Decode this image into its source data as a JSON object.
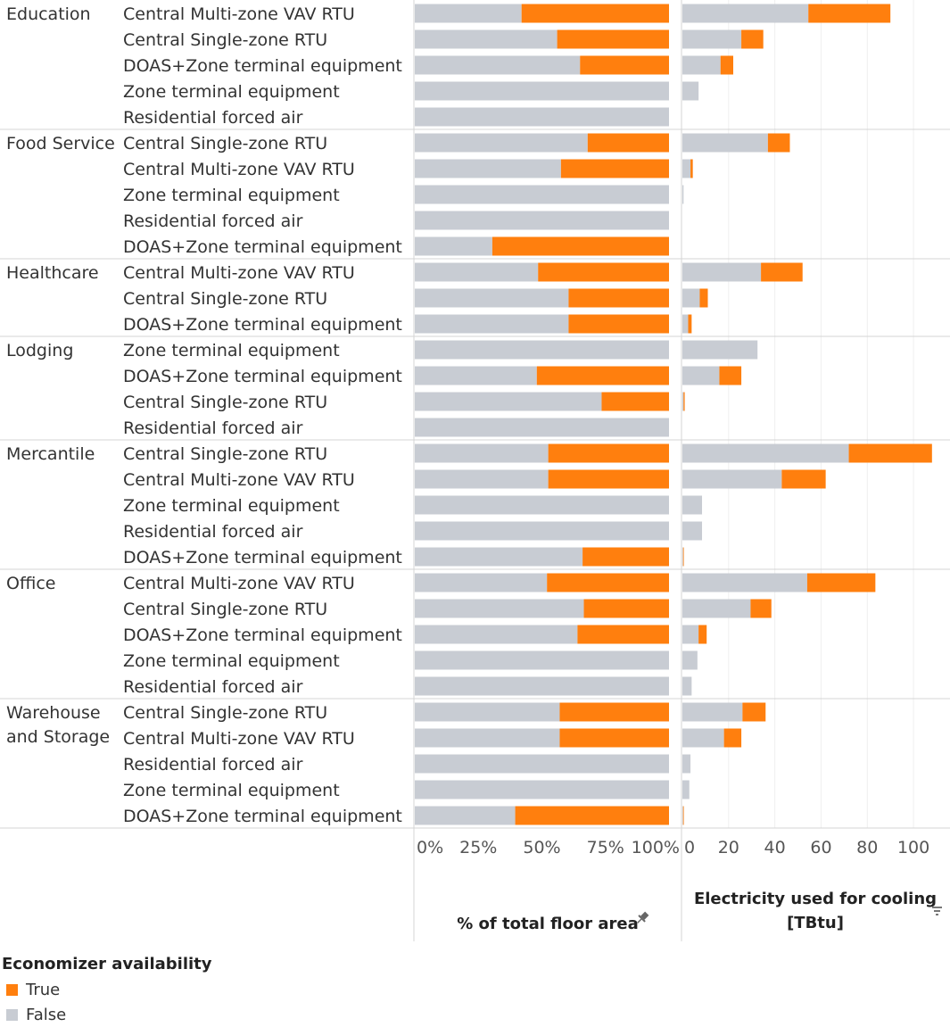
{
  "colors": {
    "true": "#ff7f0e",
    "false": "#c8ccd3"
  },
  "chart_data": {
    "type": "bar",
    "orientation": "horizontal",
    "stacked": true,
    "legend": {
      "title": "Economizer availability",
      "placement": "bottom-left",
      "items": [
        {
          "label": "True",
          "color": "#ff7f0e"
        },
        {
          "label": "False",
          "color": "#c8ccd3"
        }
      ]
    },
    "panels": [
      {
        "xlabel": "% of total floor area",
        "xlim": [
          0,
          100
        ],
        "ticks": [
          0,
          25,
          50,
          75,
          100
        ],
        "tick_labels": [
          "0%",
          "25%",
          "50%",
          "75%",
          "100%"
        ],
        "grid": false,
        "icon": "pin-icon"
      },
      {
        "xlabel": "Electricity used for cooling [TBtu]",
        "xlim": [
          0,
          110
        ],
        "ticks": [
          0,
          20,
          40,
          60,
          80,
          100
        ],
        "tick_labels": [
          "0",
          "20",
          "40",
          "60",
          "80",
          "100"
        ],
        "grid": true,
        "icon": "sort-icon"
      }
    ],
    "groups": [
      {
        "name": "Education",
        "rows": [
          {
            "system": "Central Multi-zone VAV RTU",
            "pct_false": 42,
            "pct_true": 58,
            "tbtu_false": 54.5,
            "tbtu_true": 35.5
          },
          {
            "system": "Central Single-zone RTU",
            "pct_false": 56,
            "pct_true": 44,
            "tbtu_false": 25.5,
            "tbtu_true": 9.5
          },
          {
            "system": "DOAS+Zone terminal equipment",
            "pct_false": 65,
            "pct_true": 35,
            "tbtu_false": 16.5,
            "tbtu_true": 5.5
          },
          {
            "system": "Zone terminal equipment",
            "pct_false": 100,
            "pct_true": 0,
            "tbtu_false": 7,
            "tbtu_true": 0
          },
          {
            "system": "Residential forced air",
            "pct_false": 100,
            "pct_true": 0,
            "tbtu_false": 0,
            "tbtu_true": 0
          }
        ]
      },
      {
        "name": "Food Service",
        "rows": [
          {
            "system": "Central Single-zone RTU",
            "pct_false": 68,
            "pct_true": 32,
            "tbtu_false": 37,
            "tbtu_true": 9.5
          },
          {
            "system": "Central Multi-zone VAV RTU",
            "pct_false": 57.5,
            "pct_true": 42.5,
            "tbtu_false": 3.5,
            "tbtu_true": 1
          },
          {
            "system": "Zone terminal equipment",
            "pct_false": 100,
            "pct_true": 0,
            "tbtu_false": 0.5,
            "tbtu_true": 0
          },
          {
            "system": "Residential forced air",
            "pct_false": 100,
            "pct_true": 0,
            "tbtu_false": 0,
            "tbtu_true": 0
          },
          {
            "system": "DOAS+Zone terminal equipment",
            "pct_false": 30.5,
            "pct_true": 69.5,
            "tbtu_false": 0,
            "tbtu_true": 0
          }
        ]
      },
      {
        "name": "Healthcare",
        "rows": [
          {
            "system": "Central Multi-zone VAV RTU",
            "pct_false": 48.5,
            "pct_true": 51.5,
            "tbtu_false": 34,
            "tbtu_true": 18
          },
          {
            "system": "Central Single-zone RTU",
            "pct_false": 60.5,
            "pct_true": 39.5,
            "tbtu_false": 7.5,
            "tbtu_true": 3.5
          },
          {
            "system": "DOAS+Zone terminal equipment",
            "pct_false": 60.5,
            "pct_true": 39.5,
            "tbtu_false": 2.5,
            "tbtu_true": 1.5
          }
        ]
      },
      {
        "name": "Lodging",
        "rows": [
          {
            "system": "Zone terminal equipment",
            "pct_false": 100,
            "pct_true": 0,
            "tbtu_false": 32.5,
            "tbtu_true": 0
          },
          {
            "system": "DOAS+Zone terminal equipment",
            "pct_false": 48,
            "pct_true": 52,
            "tbtu_false": 16,
            "tbtu_true": 9.5
          },
          {
            "system": "Central Single-zone RTU",
            "pct_false": 73.5,
            "pct_true": 26.5,
            "tbtu_false": 0.5,
            "tbtu_true": 0.5
          },
          {
            "system": "Residential forced air",
            "pct_false": 100,
            "pct_true": 0,
            "tbtu_false": 0,
            "tbtu_true": 0
          }
        ]
      },
      {
        "name": "Mercantile",
        "rows": [
          {
            "system": "Central Single-zone RTU",
            "pct_false": 52.5,
            "pct_true": 47.5,
            "tbtu_false": 72,
            "tbtu_true": 36
          },
          {
            "system": "Central Multi-zone VAV RTU",
            "pct_false": 52.5,
            "pct_true": 47.5,
            "tbtu_false": 43,
            "tbtu_true": 19
          },
          {
            "system": "Zone terminal equipment",
            "pct_false": 100,
            "pct_true": 0,
            "tbtu_false": 8.5,
            "tbtu_true": 0
          },
          {
            "system": "Residential forced air",
            "pct_false": 100,
            "pct_true": 0,
            "tbtu_false": 8.5,
            "tbtu_true": 0
          },
          {
            "system": "DOAS+Zone terminal equipment",
            "pct_false": 66,
            "pct_true": 34,
            "tbtu_false": 0.3,
            "tbtu_true": 0.3
          }
        ]
      },
      {
        "name": "Office",
        "rows": [
          {
            "system": "Central Multi-zone VAV RTU",
            "pct_false": 52,
            "pct_true": 48,
            "tbtu_false": 54,
            "tbtu_true": 29.5
          },
          {
            "system": "Central Single-zone RTU",
            "pct_false": 66.5,
            "pct_true": 33.5,
            "tbtu_false": 29.5,
            "tbtu_true": 9
          },
          {
            "system": "DOAS+Zone terminal equipment",
            "pct_false": 64,
            "pct_true": 36,
            "tbtu_false": 7,
            "tbtu_true": 3.5
          },
          {
            "system": "Zone terminal equipment",
            "pct_false": 100,
            "pct_true": 0,
            "tbtu_false": 6.5,
            "tbtu_true": 0
          },
          {
            "system": "Residential forced air",
            "pct_false": 100,
            "pct_true": 0,
            "tbtu_false": 4,
            "tbtu_true": 0
          }
        ]
      },
      {
        "name": "Warehouse\nand Storage",
        "rows": [
          {
            "system": "Central Single-zone RTU",
            "pct_false": 57,
            "pct_true": 43,
            "tbtu_false": 26,
            "tbtu_true": 10
          },
          {
            "system": "Central Multi-zone VAV RTU",
            "pct_false": 57,
            "pct_true": 43,
            "tbtu_false": 18,
            "tbtu_true": 7.5
          },
          {
            "system": "Residential forced air",
            "pct_false": 100,
            "pct_true": 0,
            "tbtu_false": 3.5,
            "tbtu_true": 0
          },
          {
            "system": "Zone terminal equipment",
            "pct_false": 100,
            "pct_true": 0,
            "tbtu_false": 3,
            "tbtu_true": 0
          },
          {
            "system": "DOAS+Zone terminal equipment",
            "pct_false": 39.5,
            "pct_true": 60.5,
            "tbtu_false": 0.3,
            "tbtu_true": 0.3
          }
        ]
      }
    ]
  }
}
